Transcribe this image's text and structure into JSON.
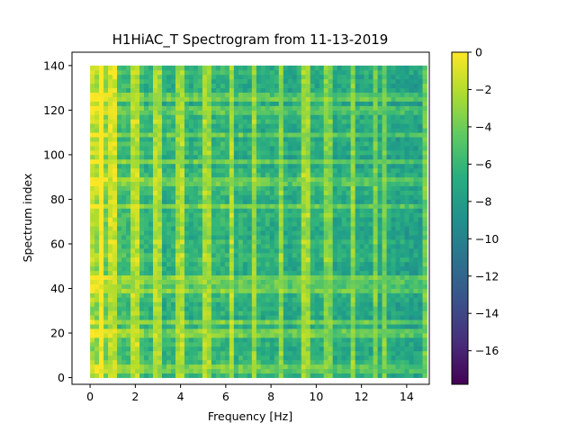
{
  "chart_data": {
    "type": "heatmap",
    "title": "H1HiAC_T Spectrogram from 11-13-2019",
    "xlabel": "Frequency [Hz]",
    "ylabel": "Spectrum index",
    "xlim": [
      -0.8,
      15.0
    ],
    "ylim": [
      -3,
      146
    ],
    "x_extent": [
      0,
      14.9
    ],
    "y_extent": [
      0,
      140
    ],
    "x_ticks": [
      0,
      2,
      4,
      6,
      8,
      10,
      12,
      14
    ],
    "x_tick_labels": [
      "0",
      "2",
      "4",
      "6",
      "8",
      "10",
      "12",
      "14"
    ],
    "y_ticks": [
      0,
      20,
      40,
      60,
      80,
      100,
      120,
      140
    ],
    "y_tick_labels": [
      "0",
      "20",
      "40",
      "60",
      "80",
      "100",
      "120",
      "140"
    ],
    "colormap": "viridis",
    "colorbar": {
      "range": [
        -17.8,
        0
      ],
      "ticks": [
        0,
        -2,
        -4,
        -6,
        -8,
        -10,
        -12,
        -14,
        -16
      ],
      "tick_labels": [
        "0",
        "−2",
        "−4",
        "−6",
        "−8",
        "−10",
        "−12",
        "−14",
        "−16"
      ]
    },
    "description_of_values": {
      "typical_level": -6.5,
      "low_frequency_band_level": -1,
      "vertical_lines_hz": [
        0.5,
        1.0,
        2.0,
        3.0,
        4.0,
        5.2,
        6.2,
        7.2,
        8.4,
        9.5,
        10.5,
        11.6,
        12.6,
        13.0,
        14.8
      ],
      "horizontal_lines_index": [
        4,
        20,
        25,
        40,
        43,
        45,
        77,
        88,
        97,
        109,
        120,
        126
      ]
    }
  }
}
